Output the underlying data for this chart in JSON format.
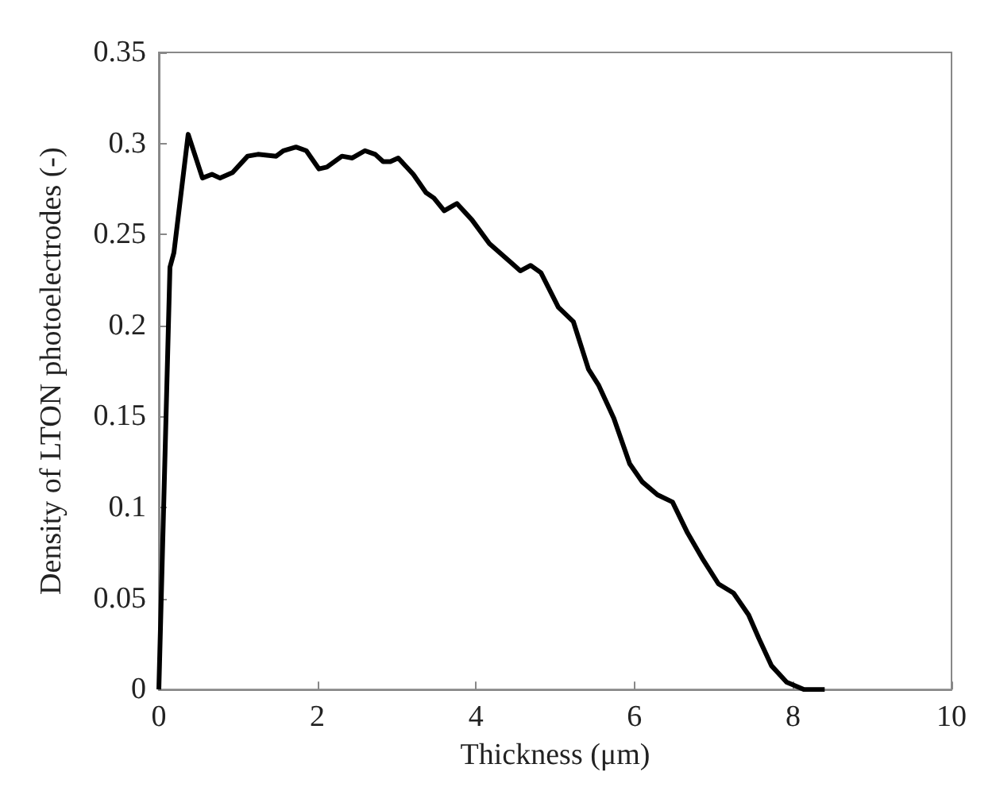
{
  "chart_data": {
    "type": "line",
    "xlabel": "Thickness (μm)",
    "ylabel": "Density of LTON photoelectrodes (-)",
    "series": [
      {
        "color": "#000000",
        "x": [
          0,
          0.14,
          0.19,
          0.37,
          0.55,
          0.67,
          0.77,
          0.93,
          1.12,
          1.25,
          1.48,
          1.57,
          1.73,
          1.86,
          2.02,
          2.12,
          2.31,
          2.44,
          2.6,
          2.73,
          2.83,
          2.92,
          3.02,
          3.21,
          3.37,
          3.47,
          3.6,
          3.76,
          3.95,
          4.17,
          4.43,
          4.56,
          4.69,
          4.82,
          5.04,
          5.23,
          5.42,
          5.55,
          5.74,
          5.94,
          6.1,
          6.29,
          6.48,
          6.67,
          6.87,
          7.06,
          7.25,
          7.44,
          7.57,
          7.73,
          7.92,
          8.14,
          8.4
        ],
        "values": [
          0,
          0.232,
          0.24,
          0.305,
          0.281,
          0.283,
          0.281,
          0.284,
          0.293,
          0.294,
          0.293,
          0.296,
          0.298,
          0.296,
          0.286,
          0.287,
          0.293,
          0.292,
          0.296,
          0.294,
          0.29,
          0.29,
          0.292,
          0.283,
          0.273,
          0.27,
          0.263,
          0.267,
          0.258,
          0.245,
          0.235,
          0.23,
          0.233,
          0.229,
          0.21,
          0.202,
          0.176,
          0.167,
          0.149,
          0.124,
          0.114,
          0.107,
          0.103,
          0.086,
          0.071,
          0.058,
          0.053,
          0.041,
          0.028,
          0.013,
          0.004,
          0,
          0
        ]
      }
    ],
    "xlim": [
      0,
      10
    ],
    "xticks": [
      0,
      2,
      4,
      6,
      8,
      10
    ],
    "ylim": [
      0,
      0.35
    ],
    "yticks": [
      0,
      0.05,
      0.1,
      0.15,
      0.2,
      0.25,
      0.3,
      0.35
    ],
    "marker": "none",
    "line_style": "solid"
  }
}
